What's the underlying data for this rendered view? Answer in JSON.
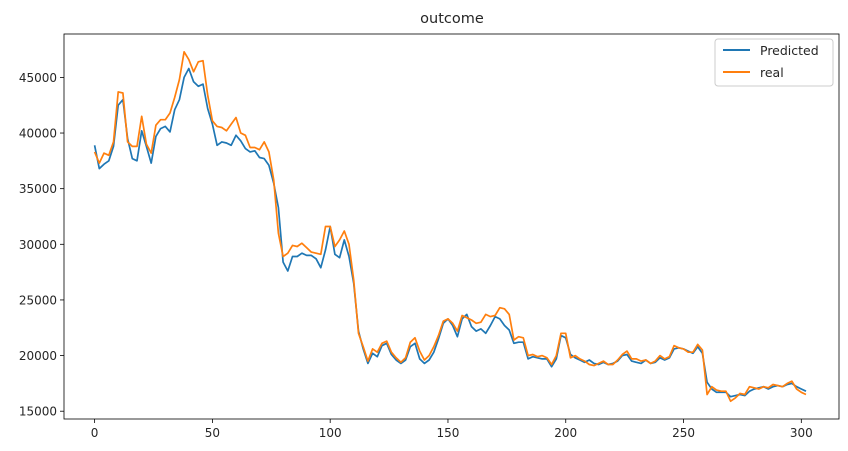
{
  "chart_data": {
    "type": "line",
    "title": "outcome",
    "xlabel": "",
    "ylabel": "",
    "xlim": [
      -13,
      316
    ],
    "ylim": [
      14300,
      48900
    ],
    "xticks": [
      0,
      50,
      100,
      150,
      200,
      250,
      300
    ],
    "yticks": [
      15000,
      20000,
      25000,
      30000,
      35000,
      40000,
      45000
    ],
    "grid": false,
    "legend": "top-right",
    "series": [
      {
        "name": "Predicted",
        "color": "#1f77b4",
        "x": [
          0,
          2,
          4,
          6,
          8,
          10,
          12,
          14,
          16,
          18,
          20,
          22,
          24,
          26,
          28,
          30,
          32,
          34,
          36,
          38,
          40,
          42,
          44,
          46,
          48,
          50,
          52,
          54,
          56,
          58,
          60,
          62,
          64,
          66,
          68,
          70,
          72,
          74,
          76,
          78,
          80,
          82,
          84,
          86,
          88,
          90,
          92,
          94,
          96,
          98,
          100,
          102,
          104,
          106,
          108,
          110,
          112,
          114,
          116,
          118,
          120,
          122,
          124,
          126,
          128,
          130,
          132,
          134,
          136,
          138,
          140,
          142,
          144,
          146,
          148,
          150,
          152,
          154,
          156,
          158,
          160,
          162,
          164,
          166,
          168,
          170,
          172,
          174,
          176,
          178,
          180,
          182,
          184,
          186,
          188,
          190,
          192,
          194,
          196,
          198,
          200,
          202,
          204,
          206,
          208,
          210,
          212,
          214,
          216,
          218,
          220,
          222,
          224,
          226,
          228,
          230,
          232,
          234,
          236,
          238,
          240,
          242,
          244,
          246,
          248,
          250,
          252,
          254,
          256,
          258,
          260,
          262,
          264,
          266,
          268,
          270,
          272,
          274,
          276,
          278,
          280,
          282,
          284,
          286,
          288,
          290,
          292,
          294,
          296,
          298,
          300,
          302
        ],
        "y": [
          38900,
          36800,
          37200,
          37500,
          38800,
          42500,
          43000,
          39500,
          37700,
          37500,
          40200,
          38800,
          37300,
          39700,
          40400,
          40600,
          40100,
          42100,
          43000,
          45000,
          45800,
          44600,
          44200,
          44400,
          42200,
          40800,
          38900,
          39200,
          39100,
          38900,
          39800,
          39300,
          38600,
          38300,
          38400,
          37800,
          37700,
          37100,
          35500,
          33300,
          28400,
          27600,
          28900,
          28900,
          29200,
          29000,
          29000,
          28700,
          27900,
          29500,
          31600,
          29100,
          28800,
          30400,
          28900,
          26500,
          22200,
          20600,
          19300,
          20200,
          19900,
          20900,
          21100,
          20100,
          19600,
          19300,
          19600,
          20800,
          21100,
          19700,
          19300,
          19600,
          20300,
          21500,
          22900,
          23300,
          22700,
          21700,
          23300,
          23700,
          22600,
          22200,
          22400,
          22000,
          22700,
          23500,
          23300,
          22700,
          22300,
          21100,
          21200,
          21200,
          19700,
          19900,
          19800,
          19700,
          19700,
          19000,
          19700,
          21800,
          21600,
          20100,
          19800,
          19600,
          19400,
          19600,
          19300,
          19200,
          19400,
          19200,
          19300,
          19500,
          20000,
          20100,
          19500,
          19400,
          19300,
          19600,
          19300,
          19400,
          19800,
          19600,
          19800,
          20600,
          20700,
          20600,
          20400,
          20200,
          20800,
          20200,
          17600,
          17000,
          16700,
          16700,
          16700,
          16300,
          16400,
          16500,
          16400,
          16800,
          17000,
          17100,
          17200,
          17000,
          17200,
          17300,
          17200,
          17400,
          17500,
          17200,
          17000,
          16800
        ]
      },
      {
        "name": "real",
        "color": "#ff7f0e",
        "x": [
          0,
          2,
          4,
          6,
          8,
          10,
          12,
          14,
          16,
          18,
          20,
          22,
          24,
          26,
          28,
          30,
          32,
          34,
          36,
          38,
          40,
          42,
          44,
          46,
          48,
          50,
          52,
          54,
          56,
          58,
          60,
          62,
          64,
          66,
          68,
          70,
          72,
          74,
          76,
          78,
          80,
          82,
          84,
          86,
          88,
          90,
          92,
          94,
          96,
          98,
          100,
          102,
          104,
          106,
          108,
          110,
          112,
          114,
          116,
          118,
          120,
          122,
          124,
          126,
          128,
          130,
          132,
          134,
          136,
          138,
          140,
          142,
          144,
          146,
          148,
          150,
          152,
          154,
          156,
          158,
          160,
          162,
          164,
          166,
          168,
          170,
          172,
          174,
          176,
          178,
          180,
          182,
          184,
          186,
          188,
          190,
          192,
          194,
          196,
          198,
          200,
          202,
          204,
          206,
          208,
          210,
          212,
          214,
          216,
          218,
          220,
          222,
          224,
          226,
          228,
          230,
          232,
          234,
          236,
          238,
          240,
          242,
          244,
          246,
          248,
          250,
          252,
          254,
          256,
          258,
          260,
          262,
          264,
          266,
          268,
          270,
          272,
          274,
          276,
          278,
          280,
          282,
          284,
          286,
          288,
          290,
          292,
          294,
          296,
          298,
          300,
          302
        ],
        "y": [
          38300,
          37300,
          38200,
          38000,
          39200,
          43700,
          43600,
          39200,
          38800,
          38800,
          41500,
          39000,
          38200,
          40700,
          41200,
          41200,
          41800,
          43200,
          44800,
          47300,
          46600,
          45500,
          46400,
          46500,
          43400,
          41100,
          40600,
          40500,
          40200,
          40800,
          41400,
          40000,
          39800,
          38700,
          38700,
          38500,
          39200,
          38300,
          35800,
          31000,
          28900,
          29200,
          29900,
          29800,
          30100,
          29700,
          29300,
          29200,
          29100,
          31600,
          31600,
          29800,
          30400,
          31200,
          30000,
          26800,
          22000,
          20800,
          19500,
          20600,
          20300,
          21100,
          21300,
          20300,
          19800,
          19400,
          19800,
          21200,
          21600,
          20400,
          19600,
          20000,
          20800,
          21800,
          23100,
          23300,
          22900,
          22200,
          23600,
          23400,
          23200,
          22900,
          23000,
          23700,
          23500,
          23600,
          24300,
          24200,
          23700,
          21400,
          21700,
          21600,
          20000,
          20100,
          19900,
          20000,
          19800,
          19200,
          20000,
          22000,
          22000,
          19800,
          20000,
          19700,
          19500,
          19200,
          19100,
          19300,
          19500,
          19200,
          19200,
          19600,
          20100,
          20400,
          19700,
          19700,
          19500,
          19600,
          19300,
          19500,
          20000,
          19700,
          19900,
          20900,
          20700,
          20600,
          20300,
          20300,
          21000,
          20500,
          16500,
          17200,
          16900,
          16800,
          16800,
          15900,
          16200,
          16600,
          16500,
          17200,
          17100,
          17000,
          17200,
          17100,
          17400,
          17300,
          17200,
          17500,
          17700,
          17000,
          16700,
          16500
        ]
      }
    ]
  }
}
